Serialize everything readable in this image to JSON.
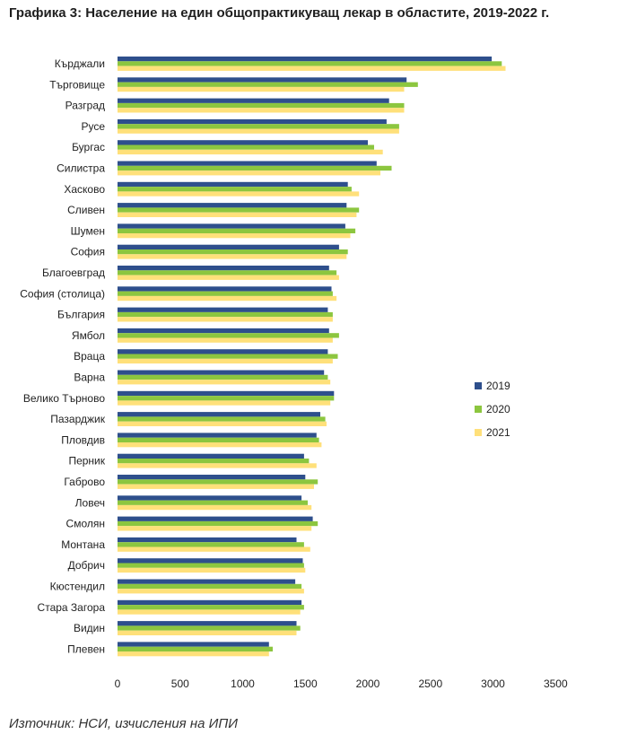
{
  "title": "Графика 3: Население на един общопрактикуващ лекар в областите, 2019-2022 г.",
  "source": "Източник: НСИ, изчисления на ИПИ",
  "colors": {
    "2019": "#2e4f8c",
    "2020": "#8cc63f",
    "2021": "#ffe07a"
  },
  "chart_data": {
    "type": "bar",
    "orientation": "horizontal",
    "categories": [
      "Кърджали",
      "Търговище",
      "Разград",
      "Русе",
      "Бургас",
      "Силистра",
      "Хасково",
      "Сливен",
      "Шумен",
      "София",
      "Благоевград",
      "София (столица)",
      "България",
      "Ямбол",
      "Враца",
      "Варна",
      "Велико Търново",
      "Пазарджик",
      "Пловдив",
      "Перник",
      "Габрово",
      "Ловеч",
      "Смолян",
      "Монтана",
      "Добрич",
      "Кюстендил",
      "Стара Загора",
      "Видин",
      "Плевен"
    ],
    "series": [
      {
        "name": "2019",
        "values": [
          2990,
          2310,
          2170,
          2150,
          2000,
          2070,
          1840,
          1830,
          1820,
          1770,
          1690,
          1710,
          1680,
          1690,
          1680,
          1650,
          1730,
          1620,
          1590,
          1490,
          1500,
          1470,
          1560,
          1430,
          1480,
          1420,
          1470,
          1430,
          1210
        ]
      },
      {
        "name": "2020",
        "values": [
          3070,
          2400,
          2290,
          2250,
          2050,
          2190,
          1870,
          1930,
          1900,
          1840,
          1750,
          1720,
          1720,
          1770,
          1760,
          1680,
          1730,
          1660,
          1610,
          1530,
          1600,
          1520,
          1600,
          1490,
          1490,
          1470,
          1490,
          1460,
          1240
        ]
      },
      {
        "name": "2021",
        "values": [
          3100,
          2290,
          2290,
          2250,
          2120,
          2100,
          1930,
          1910,
          1860,
          1830,
          1770,
          1750,
          1720,
          1720,
          1720,
          1700,
          1700,
          1670,
          1630,
          1590,
          1570,
          1550,
          1550,
          1540,
          1500,
          1490,
          1460,
          1430,
          1210
        ]
      }
    ],
    "xlim": [
      0,
      3500
    ],
    "xticks": [
      "0",
      "500",
      "1000",
      "1500",
      "2000",
      "2500",
      "3000",
      "3500"
    ],
    "grid": false,
    "legend_position": "right"
  }
}
